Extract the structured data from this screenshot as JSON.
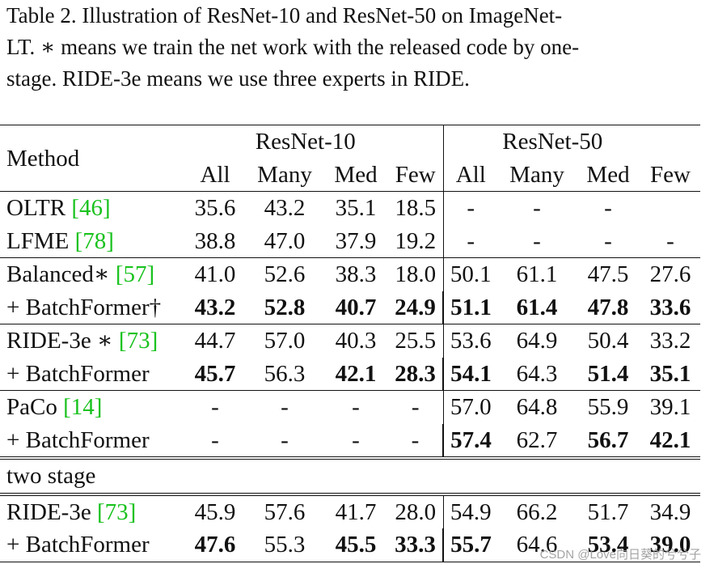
{
  "caption": {
    "line1": "Table 2.  Illustration of ResNet-10 and ResNet-50 on ImageNet-",
    "line2": "LT. ∗ means we train the net work with the released code by one-",
    "line3": "stage. RIDE-3e means we use three experts in RIDE."
  },
  "header": {
    "method": "Method",
    "group1": "ResNet-10",
    "group2": "ResNet-50",
    "cols": [
      "All",
      "Many",
      "Med",
      "Few",
      "All",
      "Many",
      "Med",
      "Few"
    ]
  },
  "rows": [
    {
      "name": "OLTR ",
      "ref": "[46]",
      "vals": [
        "35.6",
        "43.2",
        "35.1",
        "18.5",
        "-",
        "-",
        "-",
        ""
      ]
    },
    {
      "name": "LFME ",
      "ref": "[78]",
      "vals": [
        "38.8",
        "47.0",
        "37.9",
        "19.2",
        "-",
        "-",
        "-",
        "-"
      ]
    },
    {
      "name": "Balanced∗  ",
      "ref": "[57]",
      "vals": [
        "41.0",
        "52.6",
        "38.3",
        "18.0",
        "50.1",
        "61.1",
        "47.5",
        "27.6"
      ]
    },
    {
      "name": "+ BatchFormer†",
      "ref": "",
      "vals": [
        "43.2",
        "52.8",
        "40.7",
        "24.9",
        "51.1",
        "61.4",
        "47.8",
        "33.6"
      ]
    },
    {
      "name": "RIDE-3e ∗  ",
      "ref": "[73]",
      "vals": [
        "44.7",
        "57.0",
        "40.3",
        "25.5",
        "53.6",
        "64.9",
        "50.4",
        "33.2"
      ]
    },
    {
      "name": "+ BatchFormer",
      "ref": "",
      "vals": [
        "45.7",
        "56.3",
        "42.1",
        "28.3",
        "54.1",
        "64.3",
        "51.4",
        "35.1"
      ]
    },
    {
      "name": "PaCo ",
      "ref": "[14]",
      "vals": [
        "-",
        "-",
        "-",
        "-",
        "57.0",
        "64.8",
        "55.9",
        "39.1"
      ]
    },
    {
      "name": "+ BatchFormer",
      "ref": "",
      "vals": [
        "-",
        "-",
        "-",
        "-",
        "57.4",
        "62.7",
        "56.7",
        "42.1"
      ]
    },
    {
      "name": "RIDE-3e  ",
      "ref": "[73]",
      "vals": [
        "45.9",
        "57.6",
        "41.7",
        "28.0",
        "54.9",
        "66.2",
        "51.7",
        "34.9"
      ]
    },
    {
      "name": "+ BatchFormer",
      "ref": "",
      "vals": [
        "47.6",
        "55.3",
        "45.5",
        "33.3",
        "55.7",
        "64.6",
        "53.4",
        "39.0"
      ]
    }
  ],
  "section_label": "two stage",
  "watermark": "CSDN @Love向日葵的兮兮子"
}
